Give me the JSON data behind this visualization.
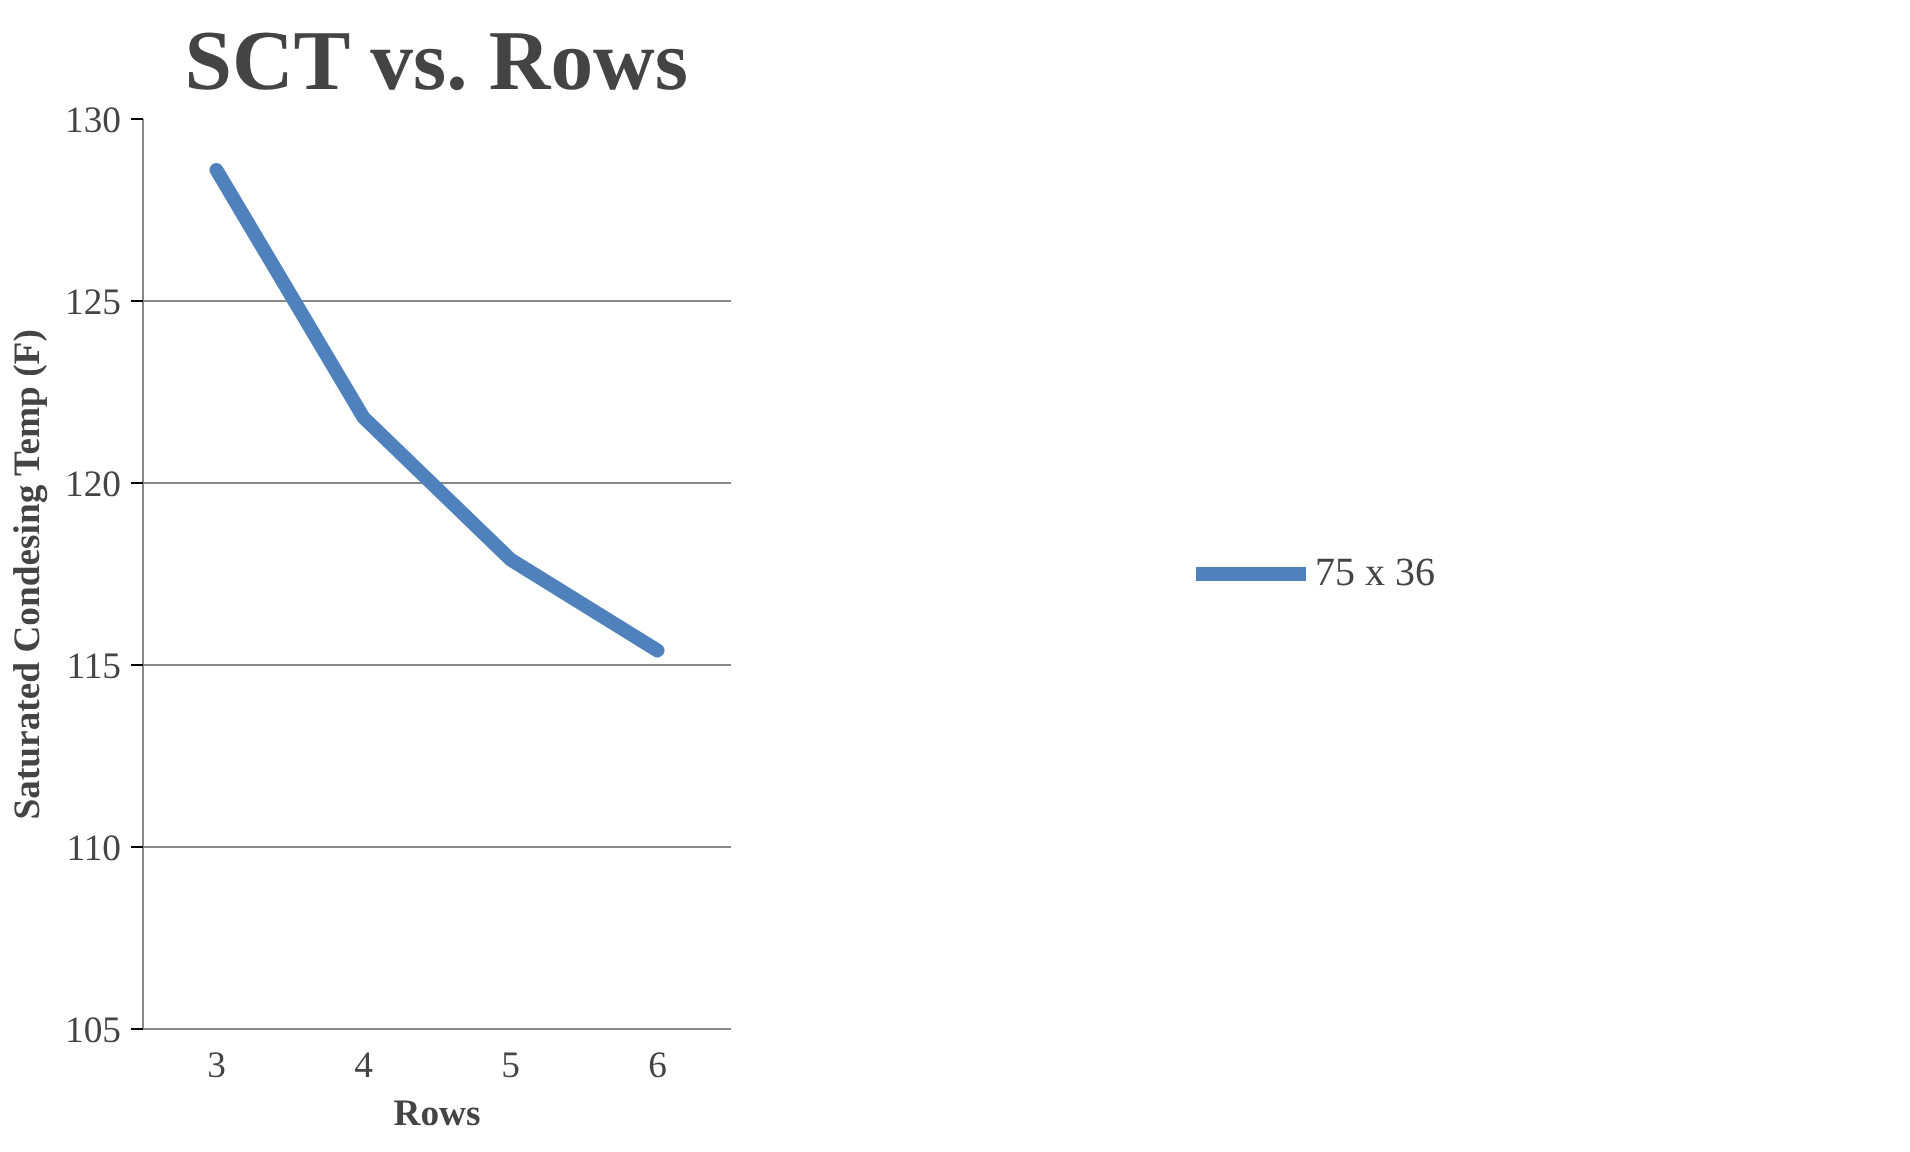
{
  "chart_data": {
    "type": "line",
    "title": "SCT vs. Rows",
    "xlabel": "Rows",
    "ylabel": "Saturated Condesing Temp (F)",
    "categories": [
      "3",
      "4",
      "5",
      "6"
    ],
    "series": [
      {
        "name": "75 x 36",
        "color": "#4f81bd",
        "values": [
          128.6,
          121.8,
          117.9,
          115.4
        ]
      }
    ],
    "ylim": [
      105,
      130
    ],
    "yticks": [
      105,
      110,
      115,
      120,
      125,
      130
    ],
    "grid": "y",
    "legend": "right",
    "marker": "none",
    "line_style": "solid"
  }
}
